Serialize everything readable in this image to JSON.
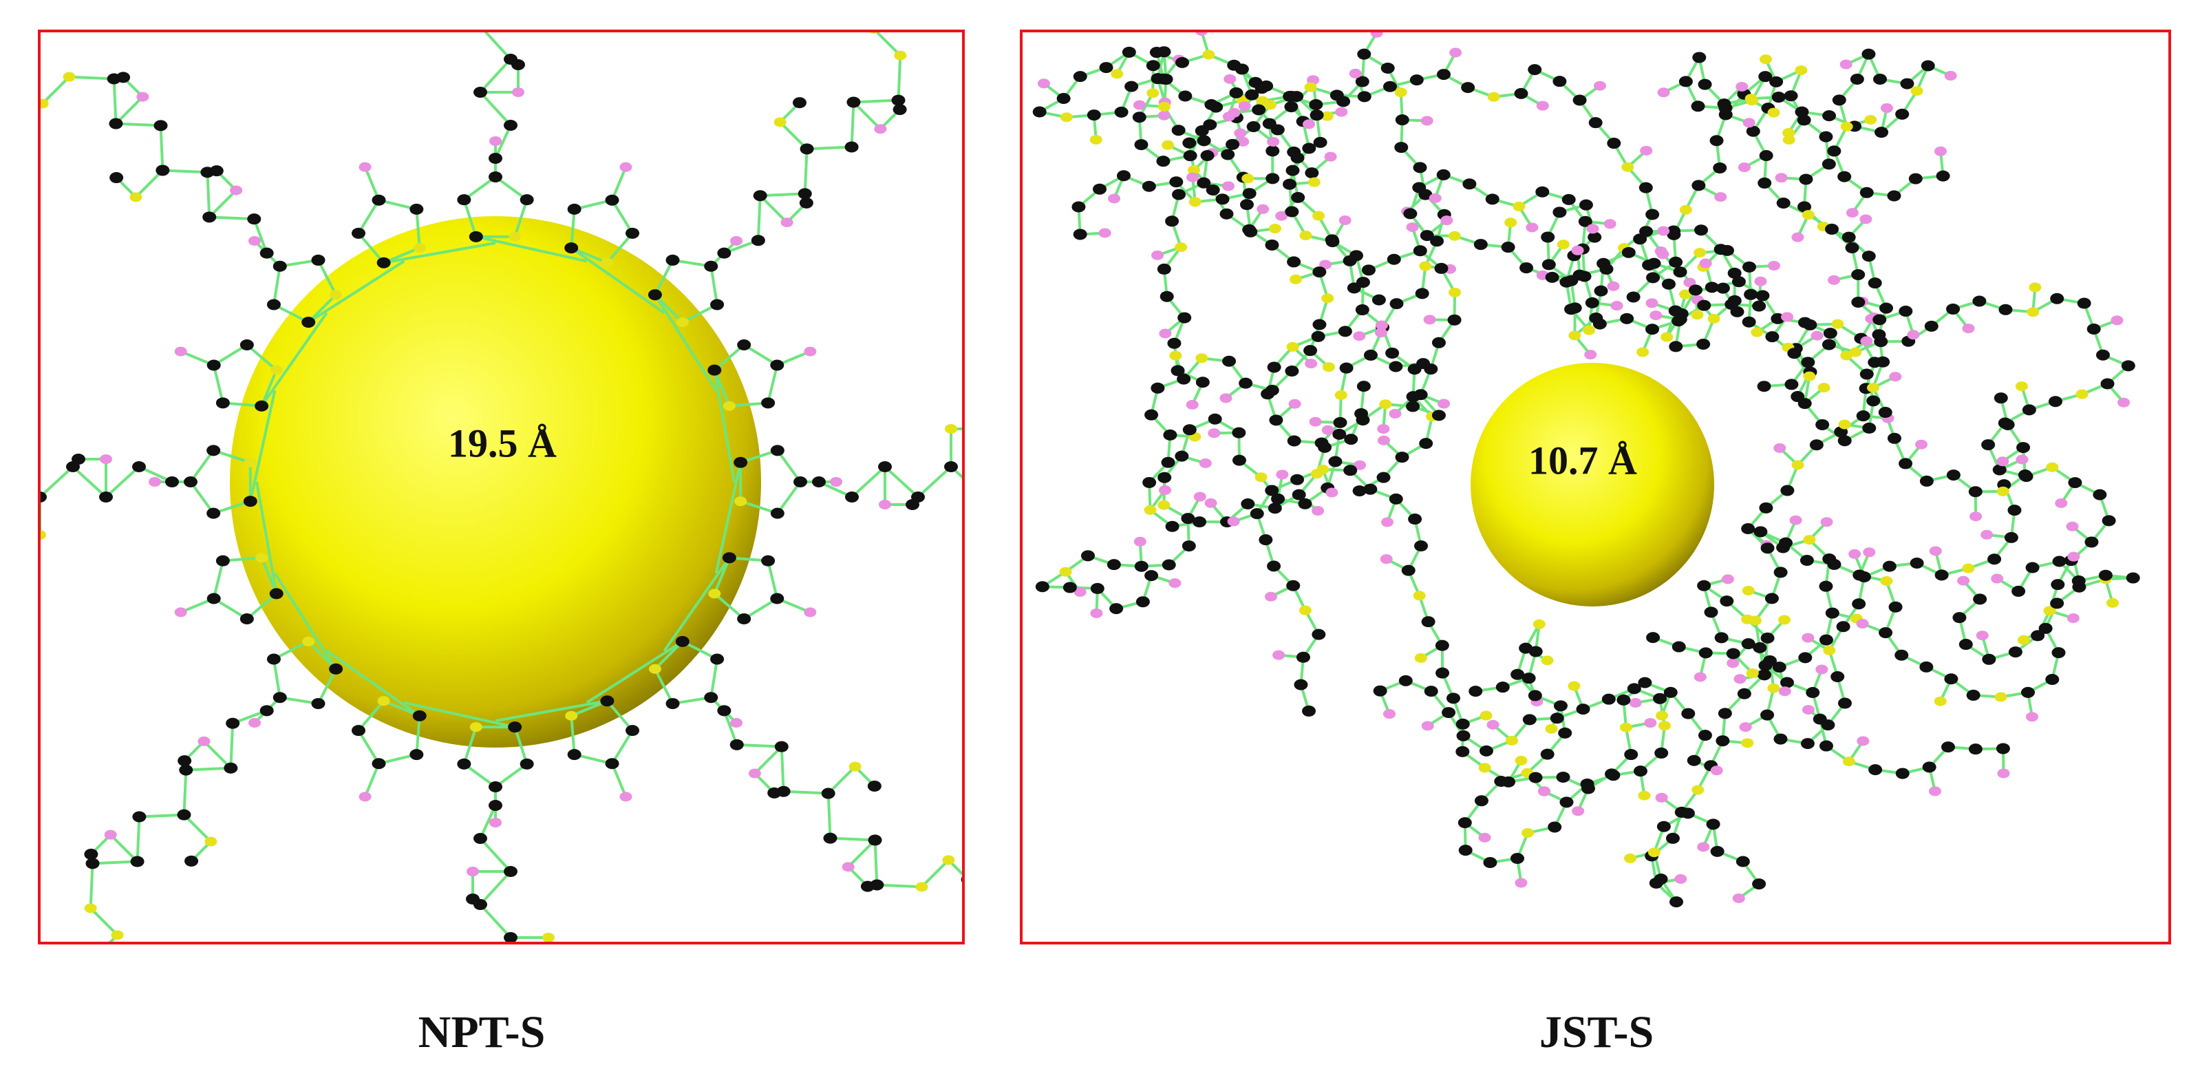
{
  "panels": [
    {
      "label": "19.5 Å",
      "caption": "NPT-S"
    },
    {
      "label": "10.7 Å",
      "caption": "JST-S"
    }
  ]
}
